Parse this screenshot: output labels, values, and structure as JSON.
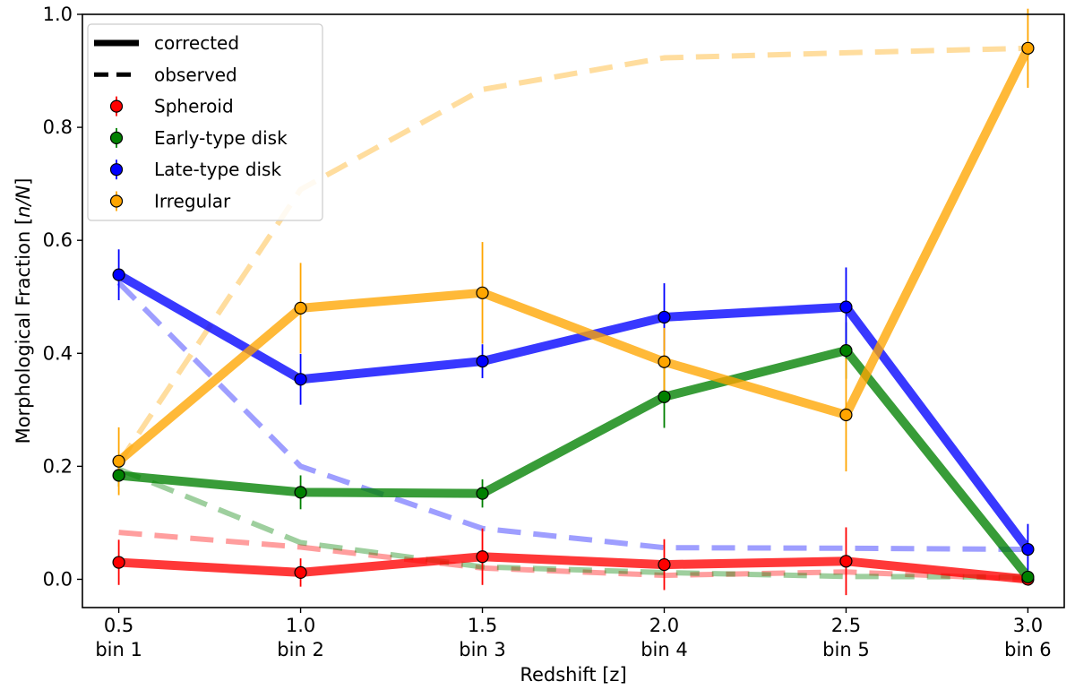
{
  "chart_data": {
    "type": "line",
    "xlabel": "Redshift [z]",
    "ylabel_prefix": "Morphological Fraction [",
    "ylabel_var": "n/N",
    "ylabel_suffix": "]",
    "xlim": [
      0.4,
      3.1
    ],
    "ylim": [
      -0.05,
      1.0
    ],
    "x": [
      0.5,
      1.0,
      1.5,
      2.0,
      2.5,
      3.0
    ],
    "x_tick_labels": [
      "0.5",
      "1.0",
      "1.5",
      "2.0",
      "2.5",
      "3.0"
    ],
    "x_bin_labels": [
      "bin 1",
      "bin 2",
      "bin 3",
      "bin 4",
      "bin 5",
      "bin 6"
    ],
    "y_ticks": [
      0.0,
      0.2,
      0.4,
      0.6,
      0.8,
      1.0
    ],
    "y_tick_labels": [
      "0.0",
      "0.2",
      "0.4",
      "0.6",
      "0.8",
      "1.0"
    ],
    "grid": false,
    "legend_position": "top-left",
    "legend_styles": [
      {
        "label": "corrected",
        "style": "solid"
      },
      {
        "label": "observed",
        "style": "dashed"
      }
    ],
    "series": [
      {
        "name": "Spheroid",
        "color": "#ff0000",
        "corrected": [
          0.03,
          0.012,
          0.04,
          0.026,
          0.032,
          0.0
        ],
        "errors": [
          0.04,
          0.025,
          0.05,
          0.045,
          0.06,
          0.005
        ],
        "observed": [
          0.083,
          0.057,
          0.02,
          0.007,
          0.013,
          0.0
        ]
      },
      {
        "name": "Early-type disk",
        "color": "#008000",
        "corrected": [
          0.184,
          0.154,
          0.152,
          0.323,
          0.405,
          0.004
        ],
        "errors": [
          0.02,
          0.03,
          0.025,
          0.055,
          0.05,
          0.005
        ],
        "observed": [
          0.195,
          0.065,
          0.022,
          0.012,
          0.005,
          0.004
        ]
      },
      {
        "name": "Late-type disk",
        "color": "#0000ff",
        "corrected": [
          0.539,
          0.354,
          0.386,
          0.464,
          0.482,
          0.053
        ],
        "errors": [
          0.045,
          0.045,
          0.03,
          0.06,
          0.07,
          0.045
        ],
        "observed": [
          0.525,
          0.2,
          0.09,
          0.056,
          0.055,
          0.053
        ]
      },
      {
        "name": "Irregular",
        "color": "#ffa500",
        "corrected": [
          0.209,
          0.48,
          0.507,
          0.385,
          0.291,
          0.94
        ],
        "errors": [
          0.06,
          0.08,
          0.09,
          0.06,
          0.1,
          0.07
        ],
        "observed": [
          0.205,
          0.69,
          0.867,
          0.923,
          0.932,
          0.94
        ]
      }
    ]
  }
}
